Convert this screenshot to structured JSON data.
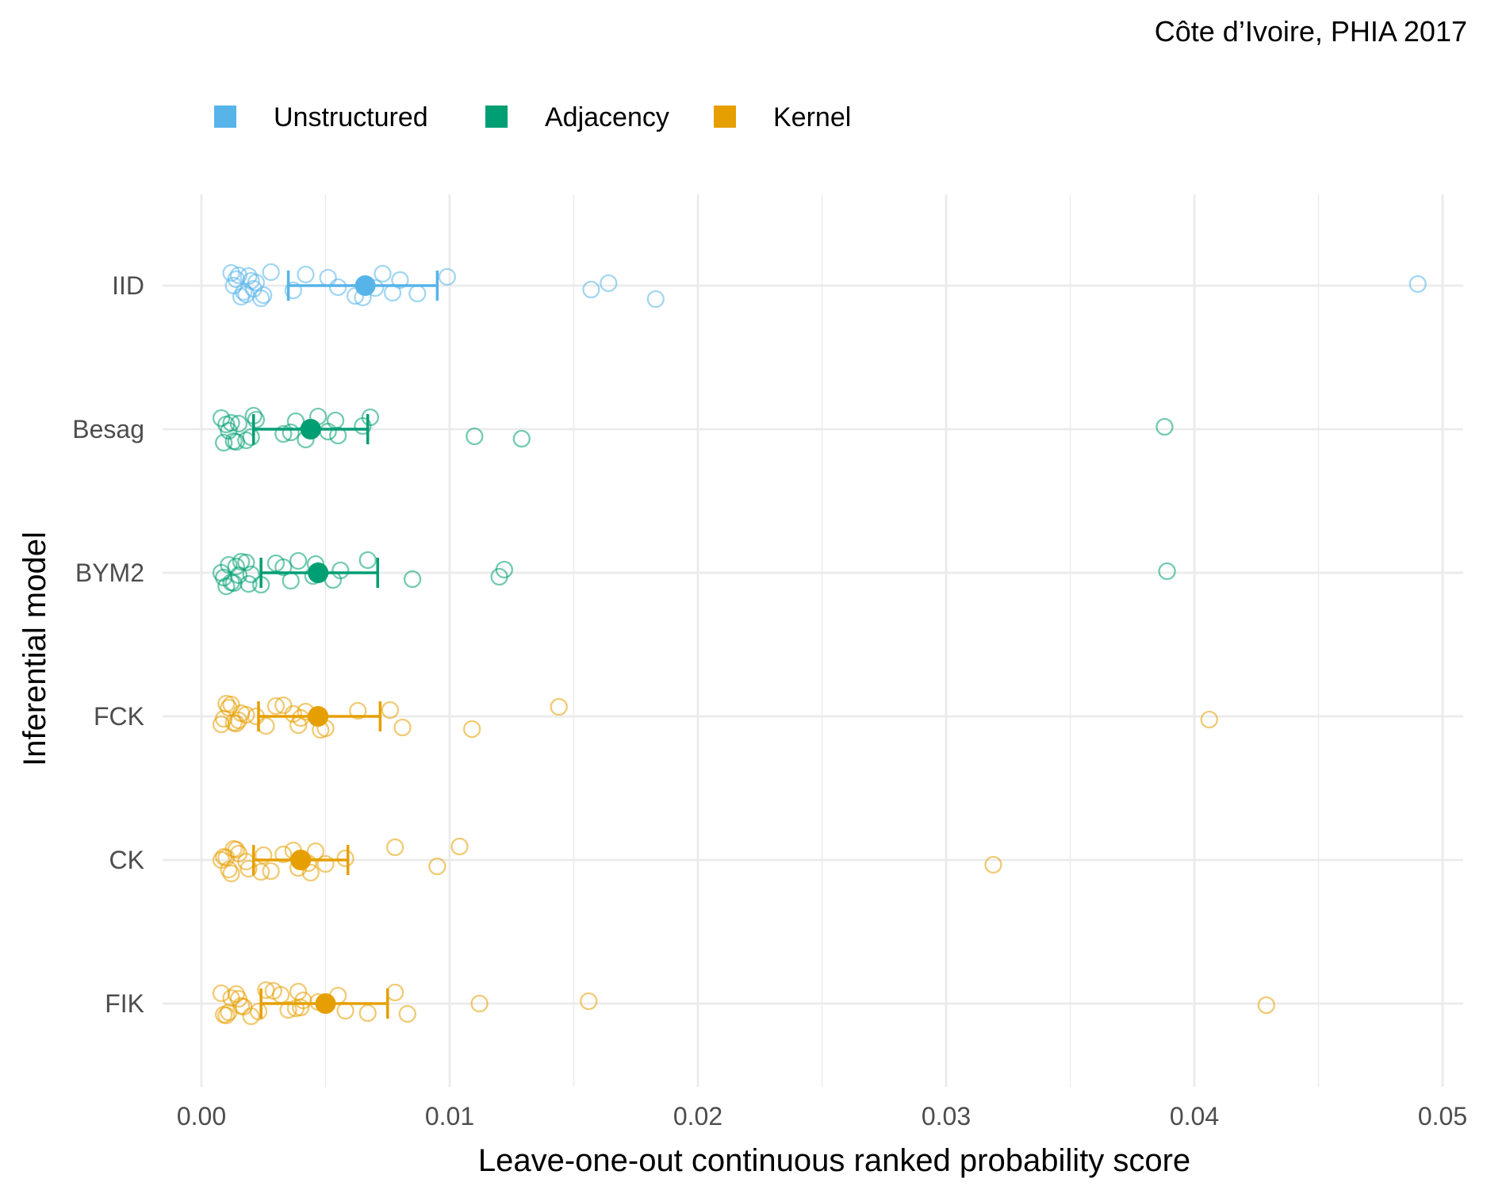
{
  "chart_data": {
    "type": "scatter",
    "subtitle": "Côte d’Ivoire, PHIA 2017",
    "xlabel": "Leave-one-out continuous ranked probability score",
    "ylabel": "Inferential model",
    "xlim": [
      -0.0007,
      0.0508
    ],
    "x_ticks": [
      0.0,
      0.01,
      0.02,
      0.03,
      0.04,
      0.05
    ],
    "x_tick_labels": [
      "0.00",
      "0.01",
      "0.02",
      "0.03",
      "0.04",
      "0.05"
    ],
    "categories": [
      "IID",
      "Besag",
      "BYM2",
      "FCK",
      "CK",
      "FIK"
    ],
    "legend": {
      "position": "top",
      "entries": [
        {
          "label": "Unstructured",
          "color": "#56B4E9"
        },
        {
          "label": "Adjacency",
          "color": "#009E73"
        },
        {
          "label": "Kernel",
          "color": "#E69F00"
        }
      ]
    },
    "grid": true,
    "series": [
      {
        "model": "IID",
        "group": "Unstructured",
        "color": "#56B4E9",
        "mean": 0.0066,
        "interval": [
          0.0035,
          0.0095
        ],
        "points": [
          0.0013,
          0.0015,
          0.0018,
          0.002,
          0.0024,
          0.0028,
          0.0037,
          0.0051,
          0.0062,
          0.007,
          0.0073,
          0.0077,
          0.0164,
          0.0183,
          0.0014,
          0.0016,
          0.0019,
          0.0021,
          0.0012,
          0.0017,
          0.0022,
          0.0025,
          0.0042,
          0.0055,
          0.0065,
          0.008,
          0.0087,
          0.0099,
          0.0157,
          0.049
        ]
      },
      {
        "model": "Besag",
        "group": "Adjacency",
        "color": "#009E73",
        "mean": 0.0044,
        "interval": [
          0.0021,
          0.0067
        ],
        "points": [
          0.001,
          0.0014,
          0.0021,
          0.0033,
          0.0038,
          0.0042,
          0.0051,
          0.0068,
          0.011,
          0.0388,
          0.0009,
          0.0012,
          0.0018,
          0.0022,
          0.0036,
          0.0047,
          0.0055,
          0.0065,
          0.0129,
          0.0008,
          0.0011,
          0.0013,
          0.0015,
          0.002,
          0.0054
        ]
      },
      {
        "model": "BYM2",
        "group": "Adjacency",
        "color": "#009E73",
        "mean": 0.0047,
        "interval": [
          0.0024,
          0.0071
        ],
        "points": [
          0.0009,
          0.0011,
          0.0013,
          0.0015,
          0.0039,
          0.0053,
          0.0056,
          0.001,
          0.0014,
          0.0019,
          0.003,
          0.0045,
          0.0067,
          0.0085,
          0.0122,
          0.0012,
          0.0016,
          0.002,
          0.0024,
          0.0033,
          0.0036,
          0.0046,
          0.012,
          0.0389,
          0.0008,
          0.0018
        ]
      },
      {
        "model": "FCK",
        "group": "Kernel",
        "color": "#E69F00",
        "mean": 0.0047,
        "interval": [
          0.0023,
          0.0072
        ],
        "points": [
          0.0009,
          0.0012,
          0.0014,
          0.0037,
          0.0048,
          0.0076,
          0.0081,
          0.0144,
          0.0406,
          0.001,
          0.0013,
          0.0016,
          0.0026,
          0.0033,
          0.004,
          0.005,
          0.0063,
          0.0008,
          0.0011,
          0.0015,
          0.0018,
          0.0022,
          0.003,
          0.0039,
          0.0042,
          0.0109
        ]
      },
      {
        "model": "CK",
        "group": "Kernel",
        "color": "#E69F00",
        "mean": 0.004,
        "interval": [
          0.0021,
          0.0059
        ],
        "points": [
          0.001,
          0.0012,
          0.0015,
          0.0028,
          0.0037,
          0.0043,
          0.0078,
          0.0095,
          0.0009,
          0.0011,
          0.0013,
          0.0018,
          0.0024,
          0.0033,
          0.0039,
          0.0046,
          0.005,
          0.0058,
          0.0008,
          0.0014,
          0.0019,
          0.0025,
          0.0044,
          0.0104,
          0.0319
        ]
      },
      {
        "model": "FIK",
        "group": "Kernel",
        "color": "#E69F00",
        "mean": 0.005,
        "interval": [
          0.0024,
          0.0075
        ],
        "points": [
          0.0009,
          0.0014,
          0.0017,
          0.0029,
          0.0035,
          0.0041,
          0.0067,
          0.0078,
          0.0429,
          0.001,
          0.0012,
          0.0023,
          0.0032,
          0.004,
          0.0047,
          0.0112,
          0.0008,
          0.0011,
          0.0015,
          0.002,
          0.0026,
          0.0038,
          0.0055,
          0.0083,
          0.0016,
          0.0039,
          0.0058,
          0.0156
        ]
      }
    ]
  }
}
